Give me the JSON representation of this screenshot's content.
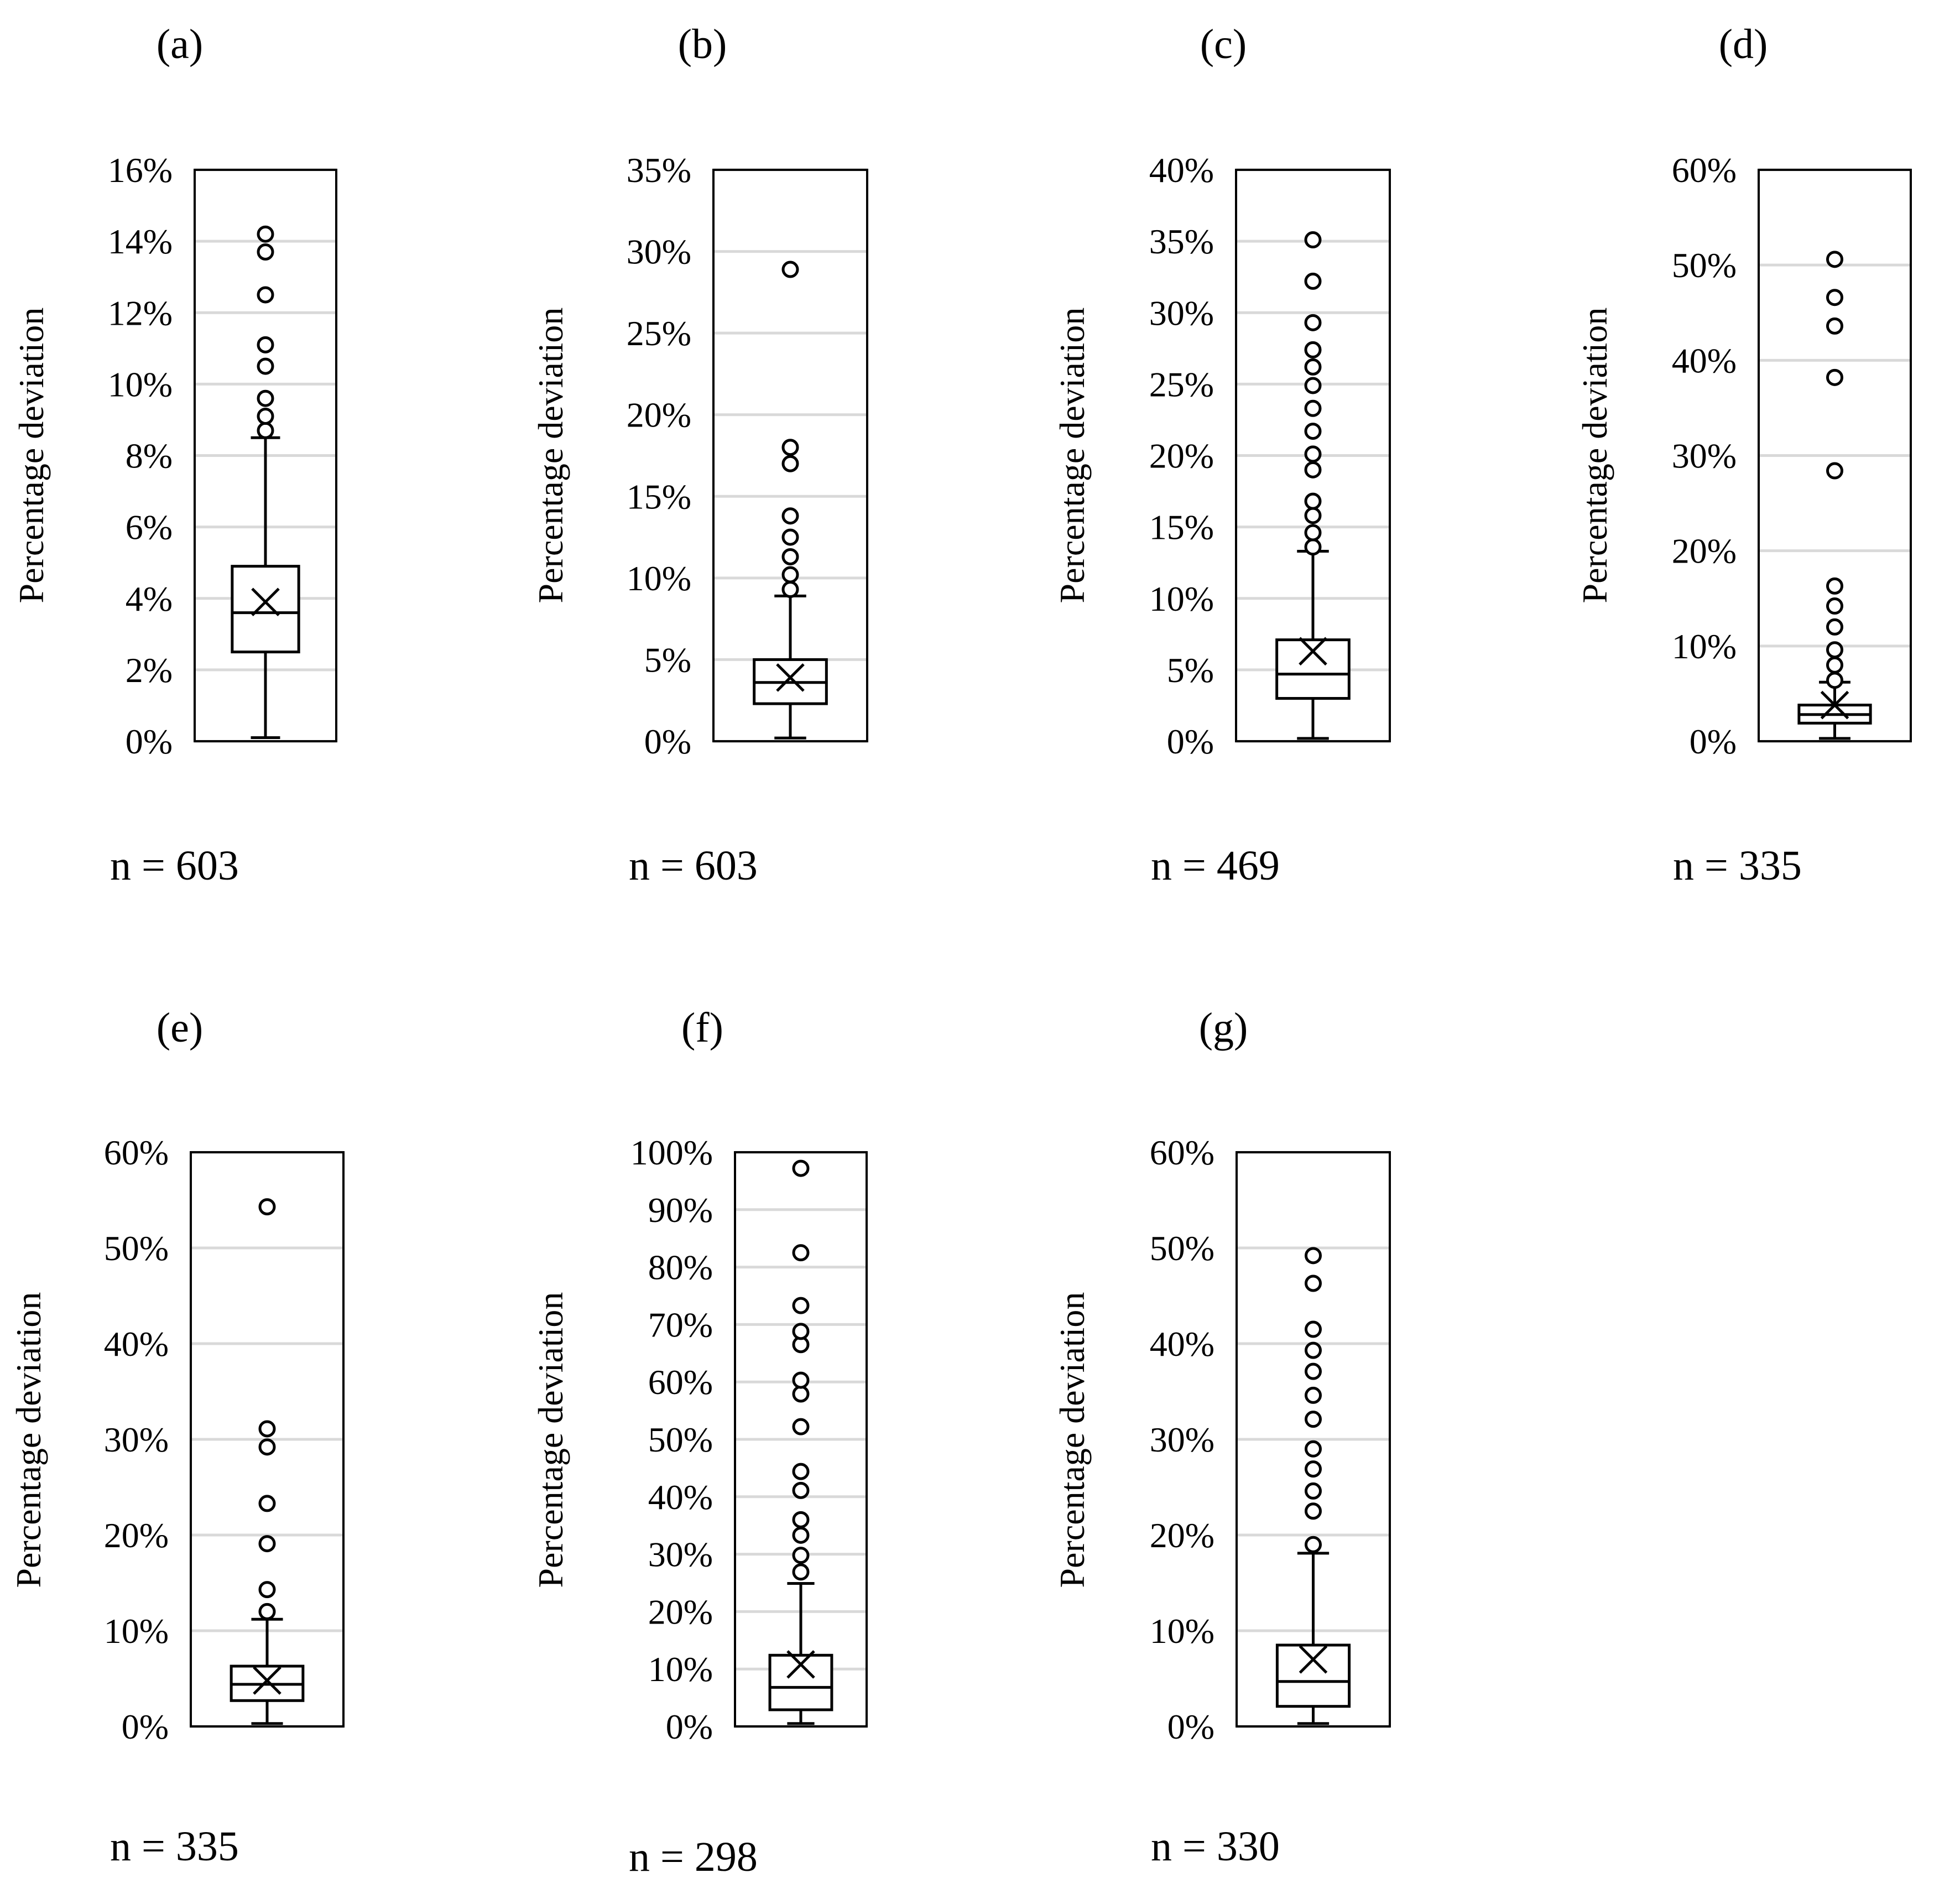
{
  "ylabel": "Percentage deviation",
  "chart_data": [
    {
      "type": "box",
      "panel": "(a)",
      "n_label": "n = 603",
      "ylabel": "Percentage deviation",
      "yticks": [
        "0%",
        "2%",
        "4%",
        "6%",
        "8%",
        "10%",
        "12%",
        "14%",
        "16%"
      ],
      "ylim": [
        0,
        16
      ],
      "min": 0.1,
      "q1": 2.5,
      "median": 3.6,
      "q3": 4.9,
      "mean": 3.9,
      "whisker_max": 8.5,
      "outliers": [
        8.7,
        9.1,
        9.6,
        10.5,
        11.1,
        12.5,
        13.7,
        14.2
      ],
      "grid": true
    },
    {
      "type": "box",
      "panel": "(b)",
      "n_label": "n = 603",
      "ylabel": "Percentage deviation",
      "yticks": [
        "0%",
        "5%",
        "10%",
        "15%",
        "20%",
        "25%",
        "30%",
        "35%"
      ],
      "ylim": [
        0,
        35
      ],
      "min": 0.2,
      "q1": 2.3,
      "median": 3.6,
      "q3": 5.0,
      "mean": 3.9,
      "whisker_max": 8.9,
      "outliers": [
        9.3,
        10.2,
        11.3,
        12.5,
        13.8,
        17.0,
        18.0,
        28.9
      ],
      "grid": true
    },
    {
      "type": "box",
      "panel": "(c)",
      "n_label": "n = 469",
      "ylabel": "Percentage deviation",
      "yticks": [
        "0%",
        "5%",
        "10%",
        "15%",
        "20%",
        "25%",
        "30%",
        "35%",
        "40%"
      ],
      "ylim": [
        0,
        40
      ],
      "min": 0.2,
      "q1": 3.0,
      "median": 4.7,
      "q3": 7.1,
      "mean": 6.3,
      "whisker_max": 13.3,
      "outliers": [
        13.6,
        14.6,
        15.8,
        16.8,
        19.0,
        20.1,
        21.7,
        23.3,
        24.9,
        26.2,
        27.4,
        29.3,
        32.2,
        35.1
      ],
      "grid": true
    },
    {
      "type": "box",
      "panel": "(d)",
      "n_label": "n = 335",
      "ylabel": "Percentage deviation",
      "yticks": [
        "0%",
        "10%",
        "20%",
        "30%",
        "40%",
        "50%",
        "60%"
      ],
      "ylim": [
        0,
        60
      ],
      "min": 0.3,
      "q1": 1.9,
      "median": 2.8,
      "q3": 3.8,
      "mean": 3.8,
      "whisker_max": 6.2,
      "outliers": [
        6.4,
        8.0,
        9.6,
        12.0,
        14.2,
        16.3,
        28.4,
        38.2,
        43.6,
        46.6,
        50.6
      ],
      "grid": true
    },
    {
      "type": "box",
      "panel": "(e)",
      "n_label": "n = 335",
      "ylabel": "Percentage deviation",
      "yticks": [
        "0%",
        "10%",
        "20%",
        "30%",
        "40%",
        "50%",
        "60%"
      ],
      "ylim": [
        0,
        60
      ],
      "min": 0.3,
      "q1": 2.7,
      "median": 4.4,
      "q3": 6.3,
      "mean": 4.8,
      "whisker_max": 11.2,
      "outliers": [
        12.0,
        14.3,
        19.1,
        23.3,
        29.2,
        31.1,
        54.3
      ],
      "grid": true
    },
    {
      "type": "box",
      "panel": "(f)",
      "n_label": "n = 298",
      "ylabel": "Percentage deviation",
      "yticks": [
        "0%",
        "10%",
        "20%",
        "30%",
        "40%",
        "50%",
        "60%",
        "70%",
        "80%",
        "90%",
        "100%"
      ],
      "ylim": [
        0,
        100
      ],
      "min": 0.5,
      "q1": 2.9,
      "median": 6.8,
      "q3": 12.4,
      "mean": 10.8,
      "whisker_max": 24.9,
      "outliers": [
        26.9,
        29.8,
        33.3,
        36.0,
        41.1,
        44.4,
        52.2,
        57.9,
        60.3,
        66.5,
        68.8,
        73.3,
        82.5,
        97.2
      ],
      "grid": true
    },
    {
      "type": "box",
      "panel": "(g)",
      "n_label": "n = 330",
      "ylabel": "Percentage deviation",
      "yticks": [
        "0%",
        "10%",
        "20%",
        "30%",
        "40%",
        "50%",
        "60%"
      ],
      "ylim": [
        0,
        60
      ],
      "min": 0.3,
      "q1": 2.1,
      "median": 4.7,
      "q3": 8.5,
      "mean": 7.0,
      "whisker_max": 18.1,
      "outliers": [
        19.0,
        22.5,
        24.6,
        26.9,
        29.0,
        32.1,
        34.6,
        37.1,
        39.3,
        41.5,
        46.3,
        49.2
      ],
      "grid": true
    }
  ]
}
